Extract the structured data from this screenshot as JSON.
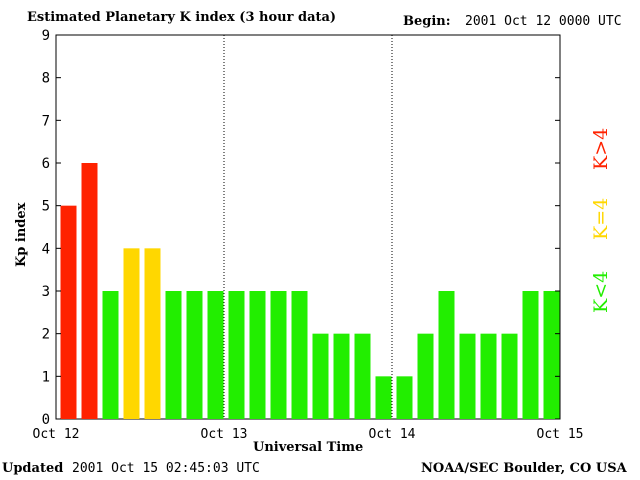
{
  "header": {
    "title": "Estimated Planetary K index (3 hour data)",
    "begin_label": "Begin:",
    "begin_value": "2001 Oct 12 0000 UTC"
  },
  "footer": {
    "updated_label": "Updated",
    "updated_value": "2001 Oct 15 02:45:03 UTC",
    "source": "NOAA/SEC Boulder, CO USA"
  },
  "legend": {
    "high": {
      "text": "K>4",
      "color": "#ff2200"
    },
    "equal": {
      "text": "K=4",
      "color": "#ffd700"
    },
    "low": {
      "text": "K<4",
      "color": "#22ee00"
    }
  },
  "chart_data": {
    "type": "bar",
    "xlabel": "Universal Time",
    "ylabel": "Kp index",
    "ylim": [
      0,
      9
    ],
    "yticks": [
      0,
      1,
      2,
      3,
      4,
      5,
      6,
      7,
      8,
      9
    ],
    "xticks": [
      "Oct 12",
      "Oct 13",
      "Oct 14",
      "Oct 15"
    ],
    "values": [
      5,
      6,
      3,
      4,
      4,
      3,
      3,
      3,
      3,
      3,
      3,
      3,
      2,
      2,
      2,
      1,
      1,
      2,
      3,
      2,
      2,
      2,
      3,
      3
    ],
    "colors": {
      "high": "#ff2200",
      "equal": "#ffd700",
      "low": "#22ee00"
    },
    "grid": "dotted vertical lines at day boundaries"
  }
}
